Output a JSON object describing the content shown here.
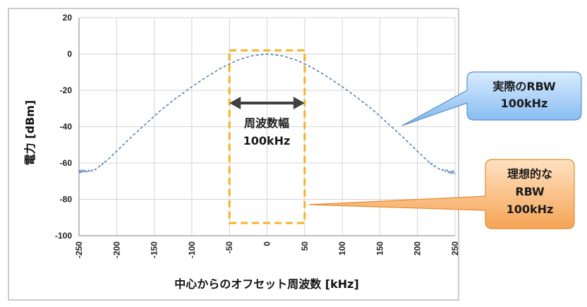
{
  "chart_data": {
    "type": "line",
    "xlabel": "中心からのオフセット周波数 [kHz]",
    "ylabel": "電力 [dBm]",
    "xlim": [
      -250,
      250
    ],
    "ylim": [
      -100,
      20
    ],
    "xticks": [
      -250,
      -200,
      -150,
      -100,
      -50,
      0,
      50,
      100,
      150,
      200,
      250
    ],
    "yticks": [
      20,
      0,
      -20,
      -40,
      -60,
      -80,
      -100
    ],
    "grid": true,
    "series": [
      {
        "color": "#4a7ebb",
        "style": "dashed",
        "x": [
          -250,
          -240,
          -230,
          -220,
          -210,
          -200,
          -180,
          -160,
          -140,
          -120,
          -100,
          -80,
          -60,
          -40,
          -20,
          0,
          20,
          40,
          60,
          80,
          100,
          120,
          140,
          160,
          180,
          200,
          210,
          220,
          230,
          240,
          250
        ],
        "y": [
          -65,
          -64.5,
          -64,
          -61,
          -57.5,
          -53.5,
          -45.5,
          -38,
          -30.5,
          -24,
          -18,
          -12.5,
          -7.5,
          -3.5,
          -1,
          0,
          -1,
          -3.5,
          -7.5,
          -12.5,
          -18,
          -24,
          -30.5,
          -38,
          -45.5,
          -53.5,
          -57.5,
          -61,
          -63.5,
          -64.5,
          -65.5
        ]
      }
    ],
    "annotations": {
      "bandwidth_label": [
        "周波数幅",
        "100kHz"
      ],
      "ideal_rbw": {
        "text": [
          "理想的な",
          "RBW",
          "100kHz"
        ],
        "x_range": [
          -50,
          50
        ],
        "y_range": [
          -93,
          2
        ],
        "color": "#f5b324"
      },
      "actual_rbw_callout": {
        "text": [
          "実際のRBW",
          "100kHz"
        ]
      },
      "ideal_rbw_callout": {
        "text": [
          "理想的な",
          "RBW",
          "100kHz"
        ]
      }
    }
  }
}
